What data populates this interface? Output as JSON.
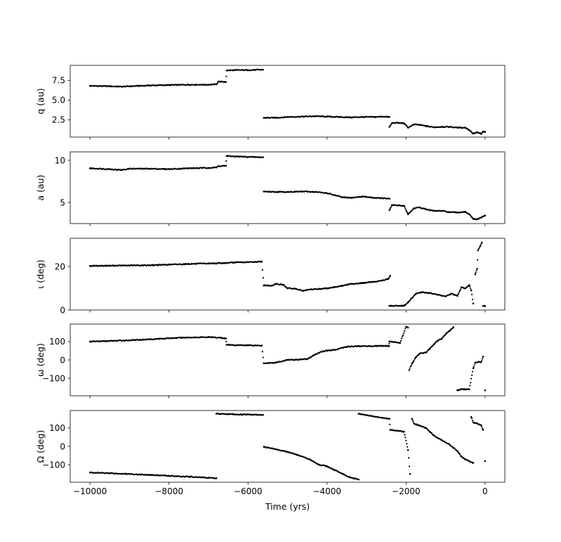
{
  "chart_data": {
    "type": "scatter",
    "shared_x": {
      "label": "Time (yrs)",
      "range": [
        -10500,
        500
      ],
      "ticks": [
        -10000,
        -8000,
        -6000,
        -4000,
        -2000,
        0
      ],
      "tick_labels": [
        "−10000",
        "−8000",
        "−6000",
        "−4000",
        "−2000",
        "0"
      ]
    },
    "marker_color": "#000000",
    "panels": [
      {
        "key": "q",
        "ylabel": "q (au)",
        "ylim": [
          0.3,
          9.4
        ],
        "yticks": [
          2.5,
          5.0,
          7.5
        ],
        "ytick_labels": [
          "2.5",
          "5.0",
          "7.5"
        ],
        "points": [
          [
            -10000,
            6.8
          ],
          [
            -9500,
            6.75
          ],
          [
            -9200,
            6.7
          ],
          [
            -9000,
            6.75
          ],
          [
            -8500,
            6.85
          ],
          [
            -8000,
            6.9
          ],
          [
            -7500,
            6.95
          ],
          [
            -7000,
            6.95
          ],
          [
            -6800,
            7.0
          ],
          [
            -6750,
            7.35
          ],
          [
            -6600,
            7.3
          ],
          [
            -6560,
            7.3
          ],
          [
            -6540,
            8.75
          ],
          [
            -6300,
            8.8
          ],
          [
            -6000,
            8.8
          ],
          [
            -5620,
            8.85
          ],
          [
            -5600,
            2.75
          ],
          [
            -5300,
            2.75
          ],
          [
            -5000,
            2.85
          ],
          [
            -4600,
            2.9
          ],
          [
            -4300,
            2.95
          ],
          [
            -4000,
            2.9
          ],
          [
            -3700,
            2.85
          ],
          [
            -3400,
            2.8
          ],
          [
            -3100,
            2.85
          ],
          [
            -2800,
            2.85
          ],
          [
            -2600,
            2.9
          ],
          [
            -2420,
            2.85
          ],
          [
            -2420,
            1.6
          ],
          [
            -2350,
            2.1
          ],
          [
            -2200,
            2.1
          ],
          [
            -2050,
            2.05
          ],
          [
            -1950,
            1.5
          ],
          [
            -1800,
            1.9
          ],
          [
            -1650,
            1.85
          ],
          [
            -1500,
            1.7
          ],
          [
            -1300,
            1.55
          ],
          [
            -1100,
            1.6
          ],
          [
            -900,
            1.6
          ],
          [
            -700,
            1.5
          ],
          [
            -500,
            1.5
          ],
          [
            -400,
            1.2
          ],
          [
            -300,
            0.75
          ],
          [
            -200,
            0.9
          ],
          [
            -100,
            0.7
          ],
          [
            -50,
            1.0
          ],
          [
            0,
            0.95
          ]
        ]
      },
      {
        "key": "a",
        "ylabel": "a (au)",
        "ylim": [
          2.5,
          11.0
        ],
        "yticks": [
          5,
          10
        ],
        "ytick_labels": [
          "5",
          "10"
        ],
        "points": [
          [
            -10000,
            9.05
          ],
          [
            -9500,
            8.95
          ],
          [
            -9200,
            8.85
          ],
          [
            -9000,
            9.0
          ],
          [
            -8500,
            9.0
          ],
          [
            -8000,
            8.95
          ],
          [
            -7500,
            9.05
          ],
          [
            -7000,
            9.1
          ],
          [
            -6800,
            9.15
          ],
          [
            -6750,
            9.3
          ],
          [
            -6600,
            9.35
          ],
          [
            -6560,
            9.35
          ],
          [
            -6540,
            10.5
          ],
          [
            -6300,
            10.45
          ],
          [
            -6000,
            10.4
          ],
          [
            -5620,
            10.35
          ],
          [
            -5600,
            6.3
          ],
          [
            -5300,
            6.25
          ],
          [
            -5000,
            6.25
          ],
          [
            -4600,
            6.3
          ],
          [
            -4300,
            6.25
          ],
          [
            -4000,
            6.1
          ],
          [
            -3800,
            5.85
          ],
          [
            -3600,
            5.6
          ],
          [
            -3400,
            5.55
          ],
          [
            -3100,
            5.7
          ],
          [
            -2800,
            5.55
          ],
          [
            -2600,
            5.5
          ],
          [
            -2420,
            5.45
          ],
          [
            -2420,
            4.1
          ],
          [
            -2350,
            4.7
          ],
          [
            -2200,
            4.65
          ],
          [
            -2050,
            4.6
          ],
          [
            -1950,
            3.6
          ],
          [
            -1800,
            4.3
          ],
          [
            -1650,
            4.4
          ],
          [
            -1500,
            4.2
          ],
          [
            -1300,
            4.0
          ],
          [
            -1100,
            4.0
          ],
          [
            -900,
            3.85
          ],
          [
            -700,
            3.8
          ],
          [
            -500,
            3.9
          ],
          [
            -400,
            3.6
          ],
          [
            -300,
            3.05
          ],
          [
            -200,
            3.0
          ],
          [
            -100,
            3.2
          ],
          [
            0,
            3.45
          ]
        ]
      },
      {
        "key": "i",
        "ylabel": "ι (deg)",
        "ylim": [
          0,
          33
        ],
        "yticks": [
          0,
          20
        ],
        "ytick_labels": [
          "0",
          "20"
        ],
        "points": [
          [
            -10000,
            20.3
          ],
          [
            -9500,
            20.4
          ],
          [
            -9000,
            20.5
          ],
          [
            -8500,
            20.6
          ],
          [
            -8000,
            20.9
          ],
          [
            -7500,
            21.2
          ],
          [
            -7000,
            21.4
          ],
          [
            -6600,
            21.6
          ],
          [
            -6300,
            21.9
          ],
          [
            -6000,
            22.0
          ],
          [
            -5650,
            22.3
          ],
          [
            -5600,
            11.3
          ],
          [
            -5400,
            11.2
          ],
          [
            -5300,
            12.0
          ],
          [
            -5100,
            11.6
          ],
          [
            -5000,
            10.0
          ],
          [
            -4800,
            9.8
          ],
          [
            -4600,
            8.8
          ],
          [
            -4400,
            9.5
          ],
          [
            -4200,
            9.7
          ],
          [
            -4000,
            10.0
          ],
          [
            -3800,
            10.6
          ],
          [
            -3600,
            11.2
          ],
          [
            -3400,
            12.0
          ],
          [
            -3100,
            12.4
          ],
          [
            -2800,
            13.0
          ],
          [
            -2600,
            13.6
          ],
          [
            -2450,
            14.3
          ],
          [
            -2400,
            15.8
          ],
          [
            -2420,
            1.9
          ],
          [
            -2200,
            1.9
          ],
          [
            -2050,
            2.0
          ],
          [
            -1950,
            3.5
          ],
          [
            -1850,
            5.5
          ],
          [
            -1750,
            7.5
          ],
          [
            -1600,
            8.2
          ],
          [
            -1400,
            7.8
          ],
          [
            -1200,
            7.0
          ],
          [
            -1000,
            6.3
          ],
          [
            -850,
            7.5
          ],
          [
            -700,
            6.5
          ],
          [
            -600,
            10.5
          ],
          [
            -500,
            10.0
          ],
          [
            -400,
            11.5
          ],
          [
            -350,
            9.0
          ],
          [
            -300,
            3.0
          ],
          [
            -250,
            16.5
          ],
          [
            -200,
            19.0
          ],
          [
            -180,
            27.5
          ],
          [
            -120,
            29.5
          ],
          [
            -80,
            31.0
          ],
          [
            -50,
            1.8
          ],
          [
            0,
            1.8
          ]
        ]
      },
      {
        "key": "omega",
        "ylabel": "ω (deg)",
        "ylim": [
          -195,
          195
        ],
        "yticks": [
          -100,
          0,
          100
        ],
        "ytick_labels": [
          "−100",
          "0",
          "100"
        ],
        "points": [
          [
            -10000,
            100
          ],
          [
            -9500,
            103
          ],
          [
            -9000,
            107
          ],
          [
            -8500,
            112
          ],
          [
            -8000,
            118
          ],
          [
            -7500,
            122
          ],
          [
            -7000,
            124
          ],
          [
            -6700,
            121
          ],
          [
            -6560,
            117
          ],
          [
            -6540,
            82
          ],
          [
            -6300,
            80
          ],
          [
            -6000,
            80
          ],
          [
            -5650,
            78
          ],
          [
            -5600,
            -18
          ],
          [
            -5300,
            -15
          ],
          [
            -5000,
            0
          ],
          [
            -4700,
            2
          ],
          [
            -4500,
            5
          ],
          [
            -4300,
            30
          ],
          [
            -4100,
            48
          ],
          [
            -3800,
            55
          ],
          [
            -3500,
            72
          ],
          [
            -3200,
            75
          ],
          [
            -2900,
            75
          ],
          [
            -2600,
            77
          ],
          [
            -2430,
            76
          ],
          [
            -2420,
            100
          ],
          [
            -2300,
            97
          ],
          [
            -2150,
            93
          ],
          [
            -2000,
            180
          ],
          [
            -1950,
            176
          ],
          [
            -1920,
            -55
          ],
          [
            -1850,
            -20
          ],
          [
            -1750,
            15
          ],
          [
            -1650,
            35
          ],
          [
            -1500,
            40
          ],
          [
            -1400,
            60
          ],
          [
            -1300,
            85
          ],
          [
            -1200,
            105
          ],
          [
            -1100,
            115
          ],
          [
            -1000,
            140
          ],
          [
            -900,
            158
          ],
          [
            -800,
            178
          ],
          [
            -700,
            -165
          ],
          [
            -600,
            -158
          ],
          [
            -500,
            -160
          ],
          [
            -400,
            -160
          ],
          [
            -300,
            -45
          ],
          [
            -250,
            -15
          ],
          [
            -150,
            -10
          ],
          [
            -100,
            -12
          ],
          [
            -50,
            18
          ],
          [
            0,
            -165
          ]
        ]
      },
      {
        "key": "Omega",
        "ylabel": "Ω (deg)",
        "ylim": [
          -195,
          195
        ],
        "yticks": [
          -100,
          0,
          100
        ],
        "ytick_labels": [
          "−100",
          "0",
          "100"
        ],
        "points": [
          [
            -10000,
            -142
          ],
          [
            -9500,
            -146
          ],
          [
            -9000,
            -150
          ],
          [
            -8500,
            -155
          ],
          [
            -8000,
            -160
          ],
          [
            -7500,
            -165
          ],
          [
            -7000,
            -170
          ],
          [
            -6800,
            -173
          ],
          [
            -6800,
            178
          ],
          [
            -6500,
            176
          ],
          [
            -6200,
            174
          ],
          [
            -5900,
            173
          ],
          [
            -5620,
            172
          ],
          [
            -5600,
            -2
          ],
          [
            -5300,
            -15
          ],
          [
            -5000,
            -30
          ],
          [
            -4700,
            -50
          ],
          [
            -4400,
            -75
          ],
          [
            -4200,
            -100
          ],
          [
            -4000,
            -108
          ],
          [
            -3800,
            -130
          ],
          [
            -3600,
            -150
          ],
          [
            -3400,
            -170
          ],
          [
            -3200,
            -180
          ],
          [
            -3200,
            178
          ],
          [
            -3000,
            170
          ],
          [
            -2800,
            162
          ],
          [
            -2600,
            155
          ],
          [
            -2420,
            150
          ],
          [
            -2400,
            90
          ],
          [
            -2200,
            85
          ],
          [
            -2050,
            80
          ],
          [
            -1950,
            -20
          ],
          [
            -1900,
            -150
          ],
          [
            -1850,
            150
          ],
          [
            -1800,
            125
          ],
          [
            -1650,
            112
          ],
          [
            -1500,
            100
          ],
          [
            -1400,
            80
          ],
          [
            -1300,
            60
          ],
          [
            -1100,
            35
          ],
          [
            -900,
            10
          ],
          [
            -700,
            -25
          ],
          [
            -600,
            -55
          ],
          [
            -500,
            -70
          ],
          [
            -400,
            -80
          ],
          [
            -300,
            -90
          ],
          [
            -350,
            160
          ],
          [
            -300,
            130
          ],
          [
            -200,
            125
          ],
          [
            -100,
            115
          ],
          [
            -50,
            90
          ],
          [
            0,
            -80
          ]
        ]
      }
    ]
  }
}
